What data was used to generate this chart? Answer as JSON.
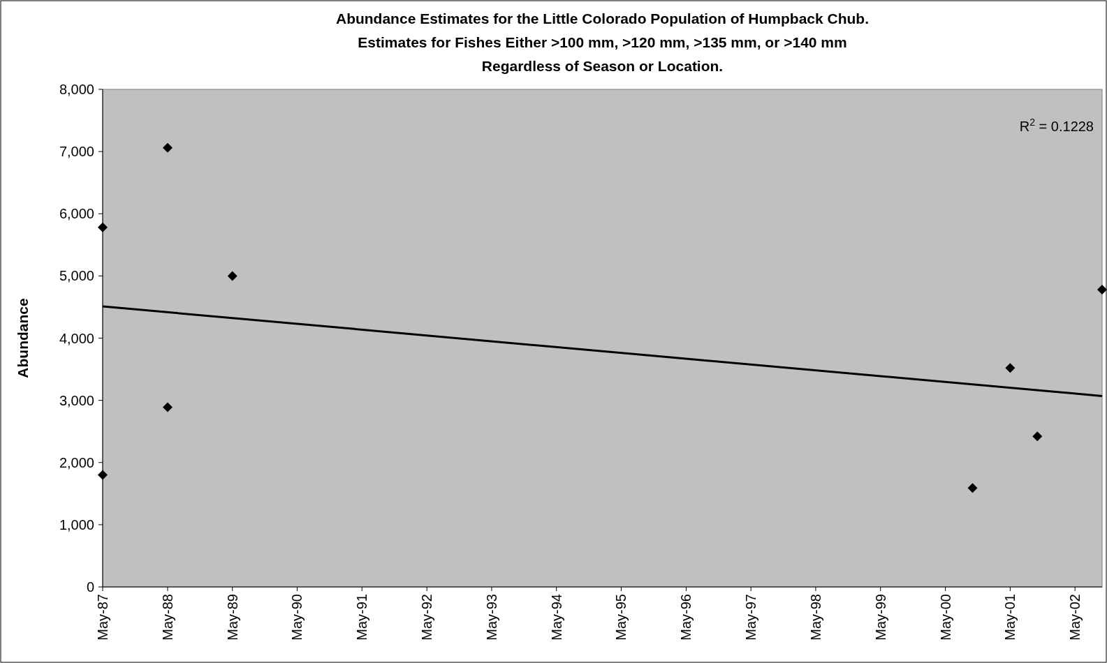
{
  "chart_data": {
    "type": "scatter",
    "title": "Abundance Estimates for the Little Colorado Population of Humpback Chub.\nEstimates for Fishes Either >100 mm, >120 mm, >135 mm, or >140 mm\nRegardless of Season or Location.",
    "ylabel": "Abundance",
    "series": [
      {
        "color": "#000000",
        "marker": "diamond",
        "x": [
          "1987-05",
          "1987-05",
          "1988-05",
          "1988-05",
          "1989-05",
          "2000-10",
          "2001-05",
          "2001-10",
          "2002-10"
        ],
        "values": [
          5780,
          1800,
          7060,
          2890,
          5000,
          1590,
          3520,
          2420,
          4780
        ]
      },
      {
        "type": "line",
        "color": "#000000",
        "marker": "none",
        "x": [
          "1987-05",
          "2002-10"
        ],
        "values": [
          4510,
          3070
        ]
      }
    ],
    "xlim": [
      "1987-05",
      "2002-10"
    ],
    "xticks": [
      {
        "value": "1987-05",
        "label": "May-87"
      },
      {
        "value": "1988-05",
        "label": "May-88"
      },
      {
        "value": "1989-05",
        "label": "May-89"
      },
      {
        "value": "1990-05",
        "label": "May-90"
      },
      {
        "value": "1991-05",
        "label": "May-91"
      },
      {
        "value": "1992-05",
        "label": "May-92"
      },
      {
        "value": "1993-05",
        "label": "May-93"
      },
      {
        "value": "1994-05",
        "label": "May-94"
      },
      {
        "value": "1995-05",
        "label": "May-95"
      },
      {
        "value": "1996-05",
        "label": "May-96"
      },
      {
        "value": "1997-05",
        "label": "May-97"
      },
      {
        "value": "1998-05",
        "label": "May-98"
      },
      {
        "value": "1999-05",
        "label": "May-99"
      },
      {
        "value": "2000-05",
        "label": "May-00"
      },
      {
        "value": "2001-05",
        "label": "May-01"
      },
      {
        "value": "2002-05",
        "label": "May-02"
      }
    ],
    "ylim": [
      0,
      8000
    ],
    "yticks": [
      0,
      {
        "value": 1000,
        "label": "1,000"
      },
      {
        "value": 2000,
        "label": "2,000"
      },
      {
        "value": 3000,
        "label": "3,000"
      },
      {
        "value": 4000,
        "label": "4,000"
      },
      {
        "value": 5000,
        "label": "5,000"
      },
      {
        "value": 6000,
        "label": "6,000"
      },
      {
        "value": 7000,
        "label": "7,000"
      },
      {
        "value": 8000,
        "label": "8,000"
      }
    ],
    "annotations": [
      "R$^{2}$ = 0.1228"
    ],
    "grid": false
  }
}
